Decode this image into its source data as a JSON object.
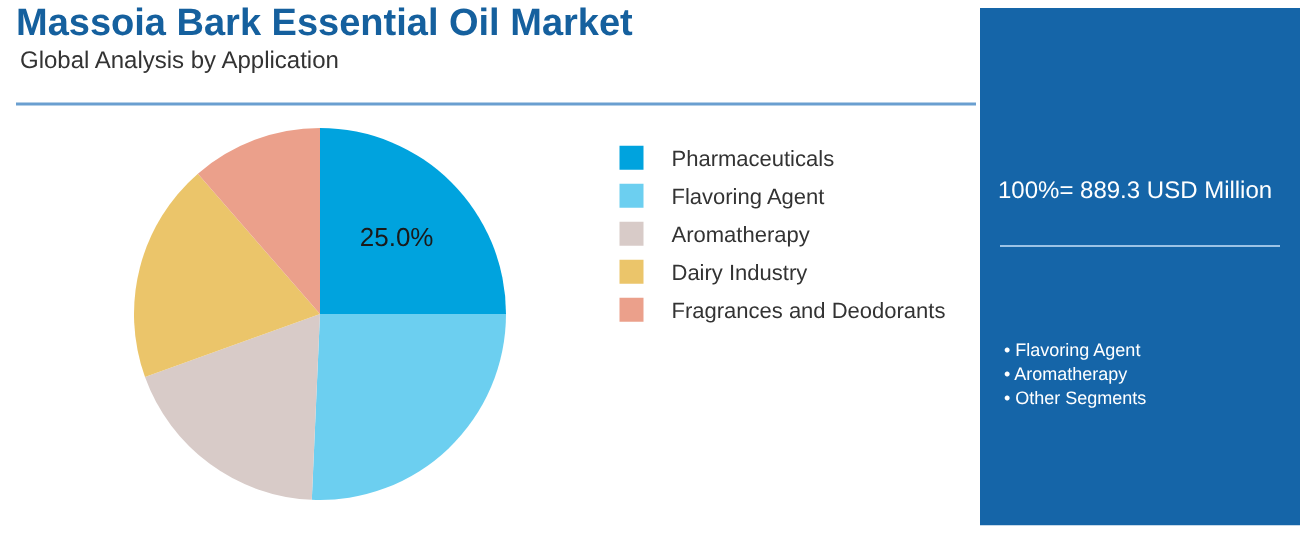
{
  "chart_data": {
    "type": "pie",
    "title": "Massoia Bark Essential Oil Market",
    "subtitle": "Global Analysis by Application",
    "categories": [
      "Pharmaceuticals",
      "Flavoring Agent",
      "Aromatherapy",
      "Dairy Industry",
      "Fragrances and Deodorants"
    ],
    "values": [
      25.0,
      25.7,
      18.8,
      19.1,
      11.4
    ],
    "colors": [
      "#00a3de",
      "#6ccff0",
      "#d8cbc8",
      "#ebc56a",
      "#eba08b"
    ],
    "value_labels": [
      "25.0%",
      null,
      null,
      null,
      null
    ],
    "legend": "right",
    "annotations": [
      "100%= 889.3 USD Million",
      "• Flavoring Agent",
      "• Aromatherapy",
      "• Other Segments"
    ]
  }
}
